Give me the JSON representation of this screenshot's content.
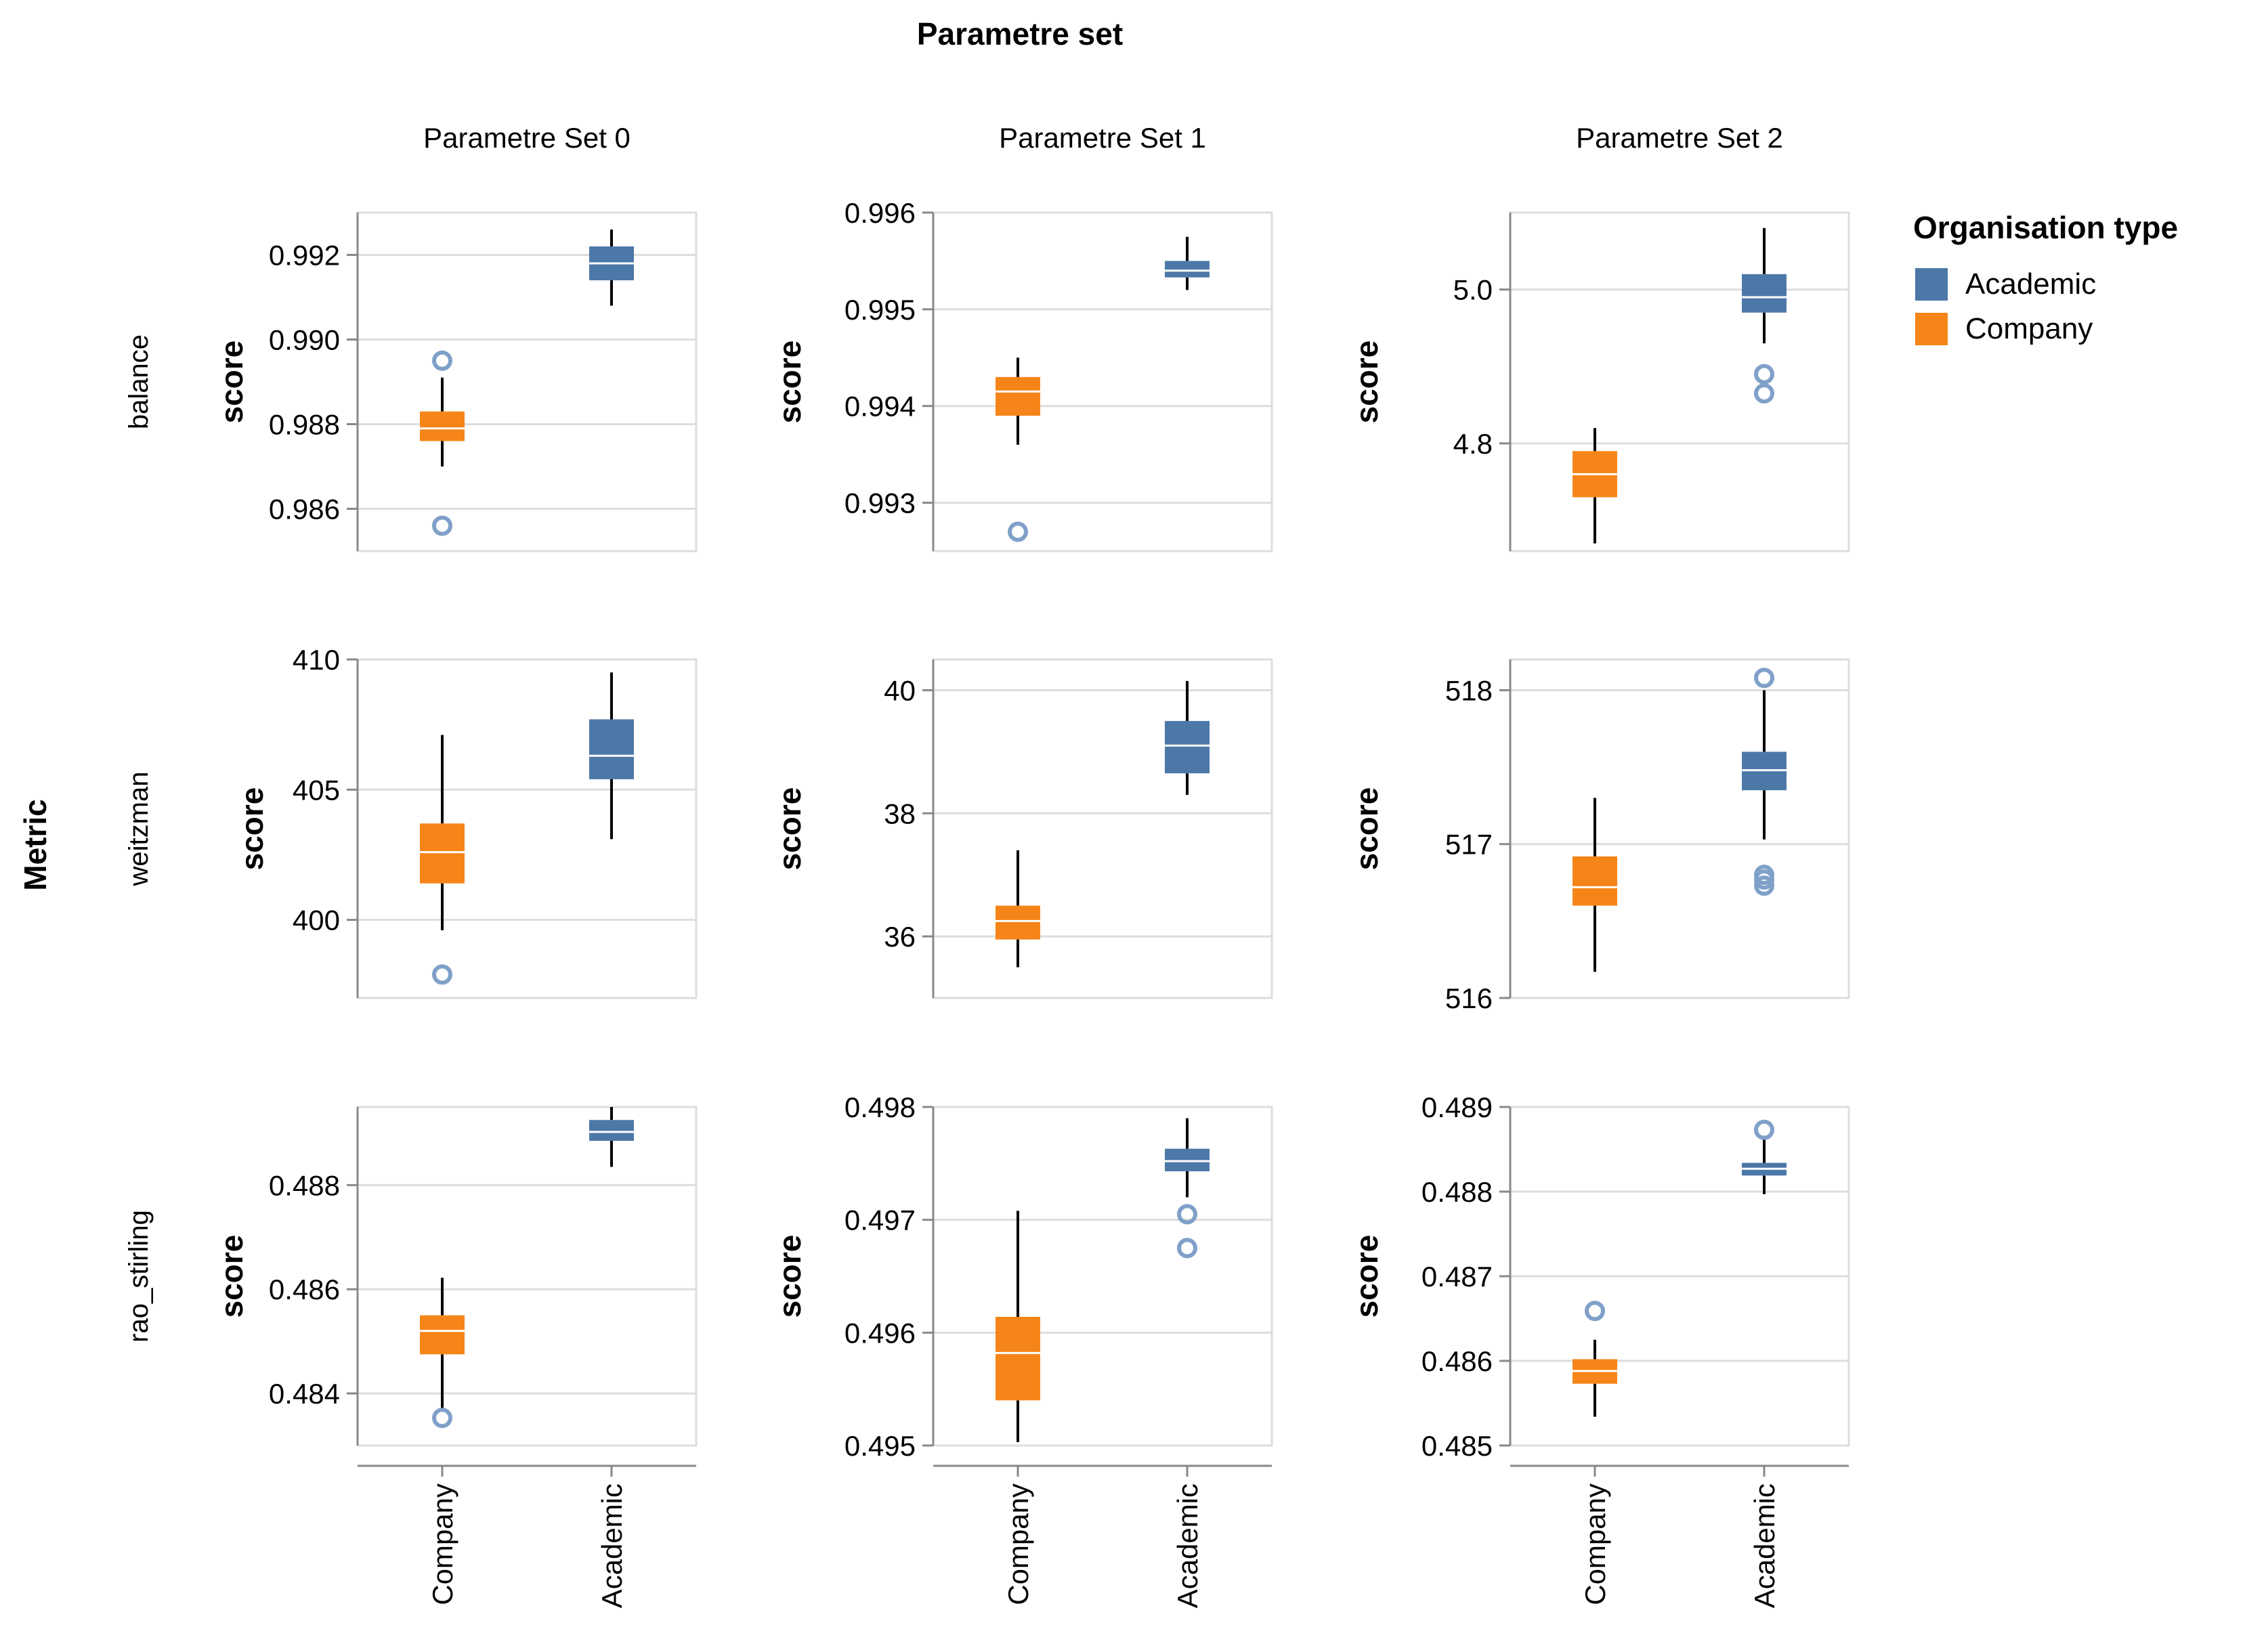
{
  "chart_data": {
    "type": "boxplot",
    "title": "Parametre set",
    "row_title": "Metric",
    "column_labels": [
      "Parametre Set 0",
      "Parametre Set 1",
      "Parametre Set 2"
    ],
    "row_labels": [
      "balance",
      "weitzman",
      "rao_stirling"
    ],
    "y_title": "score",
    "x_categories": [
      "Company",
      "Academic"
    ],
    "legend": {
      "title": "Organisation type",
      "position": "top-right",
      "items": [
        {
          "label": "Academic",
          "color": "#4c78a8"
        },
        {
          "label": "Company",
          "color": "#f58518"
        }
      ]
    },
    "colors": {
      "Academic": "#4c78a8",
      "Company": "#f58518",
      "outlier": "#7fa0c8",
      "grid": "#dddddd",
      "axis": "#888888",
      "text": "#000000"
    },
    "panels": [
      {
        "row": "balance",
        "column": "Parametre Set 0",
        "ylim": [
          0.985,
          0.993
        ],
        "yticks": [
          "0.986",
          "0.988",
          "0.990",
          "0.992"
        ],
        "ytick_values": [
          0.986,
          0.988,
          0.99,
          0.992
        ],
        "boxes": [
          {
            "group": "Company",
            "min": 0.987,
            "q1": 0.9876,
            "median": 0.9879,
            "q3": 0.9883,
            "max": 0.9891,
            "outliers": [
              0.9895,
              0.9856
            ]
          },
          {
            "group": "Academic",
            "min": 0.9908,
            "q1": 0.9914,
            "median": 0.9918,
            "q3": 0.9922,
            "max": 0.9926,
            "outliers": []
          }
        ]
      },
      {
        "row": "balance",
        "column": "Parametre Set 1",
        "ylim": [
          0.9925,
          0.996
        ],
        "yticks": [
          "0.993",
          "0.994",
          "0.995",
          "0.996"
        ],
        "ytick_values": [
          0.993,
          0.994,
          0.995,
          0.996
        ],
        "boxes": [
          {
            "group": "Company",
            "min": 0.9936,
            "q1": 0.9939,
            "median": 0.99415,
            "q3": 0.9943,
            "max": 0.9945,
            "outliers": [
              0.9927
            ]
          },
          {
            "group": "Academic",
            "min": 0.9952,
            "q1": 0.99533,
            "median": 0.9954,
            "q3": 0.9955,
            "max": 0.99575,
            "outliers": []
          }
        ]
      },
      {
        "row": "balance",
        "column": "Parametre Set 2",
        "ylim": [
          4.66,
          5.1
        ],
        "yticks": [
          "4.8",
          "5.0"
        ],
        "ytick_values": [
          4.8,
          5.0
        ],
        "boxes": [
          {
            "group": "Company",
            "min": 4.67,
            "q1": 4.73,
            "median": 4.76,
            "q3": 4.79,
            "max": 4.82,
            "outliers": []
          },
          {
            "group": "Academic",
            "min": 4.93,
            "q1": 4.97,
            "median": 4.99,
            "q3": 5.02,
            "max": 5.08,
            "outliers": [
              4.89,
              4.865
            ]
          }
        ]
      },
      {
        "row": "weitzman",
        "column": "Parametre Set 0",
        "ylim": [
          397.0,
          410.0
        ],
        "yticks": [
          "400",
          "405",
          "410"
        ],
        "ytick_values": [
          400,
          405,
          410
        ],
        "boxes": [
          {
            "group": "Company",
            "min": 399.6,
            "q1": 401.4,
            "median": 402.6,
            "q3": 403.7,
            "max": 407.1,
            "outliers": [
              397.9
            ]
          },
          {
            "group": "Academic",
            "min": 403.1,
            "q1": 405.4,
            "median": 406.3,
            "q3": 407.7,
            "max": 409.5,
            "outliers": []
          }
        ]
      },
      {
        "row": "weitzman",
        "column": "Parametre Set 1",
        "ylim": [
          35.0,
          40.5
        ],
        "yticks": [
          "36",
          "38",
          "40"
        ],
        "ytick_values": [
          36,
          38,
          40
        ],
        "boxes": [
          {
            "group": "Company",
            "min": 35.5,
            "q1": 35.95,
            "median": 36.25,
            "q3": 36.5,
            "max": 37.4,
            "outliers": []
          },
          {
            "group": "Academic",
            "min": 38.3,
            "q1": 38.65,
            "median": 39.1,
            "q3": 39.5,
            "max": 40.15,
            "outliers": []
          }
        ]
      },
      {
        "row": "weitzman",
        "column": "Parametre Set 2",
        "ylim": [
          516.0,
          518.2
        ],
        "yticks": [
          "516",
          "517",
          "518"
        ],
        "ytick_values": [
          516,
          517,
          518
        ],
        "boxes": [
          {
            "group": "Company",
            "min": 516.17,
            "q1": 516.6,
            "median": 516.72,
            "q3": 516.92,
            "max": 517.3,
            "outliers": []
          },
          {
            "group": "Academic",
            "min": 517.03,
            "q1": 517.35,
            "median": 517.48,
            "q3": 517.6,
            "max": 518.0,
            "outliers": [
              518.08,
              516.8,
              516.77,
              516.73
            ]
          }
        ]
      },
      {
        "row": "rao_stirling",
        "column": "Parametre Set 0",
        "ylim": [
          0.483,
          0.4895
        ],
        "yticks": [
          "0.484",
          "0.486",
          "0.488"
        ],
        "ytick_values": [
          0.484,
          0.486,
          0.488
        ],
        "boxes": [
          {
            "group": "Company",
            "min": 0.48365,
            "q1": 0.48475,
            "median": 0.4852,
            "q3": 0.4855,
            "max": 0.48622,
            "outliers": [
              0.48353
            ]
          },
          {
            "group": "Academic",
            "min": 0.48835,
            "q1": 0.48885,
            "median": 0.48902,
            "q3": 0.48925,
            "max": 0.4895,
            "outliers": []
          }
        ]
      },
      {
        "row": "rao_stirling",
        "column": "Parametre Set 1",
        "ylim": [
          0.495,
          0.498
        ],
        "yticks": [
          "0.495",
          "0.496",
          "0.497",
          "0.498"
        ],
        "ytick_values": [
          0.495,
          0.496,
          0.497,
          0.498
        ],
        "boxes": [
          {
            "group": "Company",
            "min": 0.49503,
            "q1": 0.4954,
            "median": 0.49582,
            "q3": 0.49614,
            "max": 0.49708,
            "outliers": []
          },
          {
            "group": "Academic",
            "min": 0.4972,
            "q1": 0.49743,
            "median": 0.49752,
            "q3": 0.49763,
            "max": 0.4979,
            "outliers": [
              0.49705,
              0.49675
            ]
          }
        ]
      },
      {
        "row": "rao_stirling",
        "column": "Parametre Set 2",
        "ylim": [
          0.485,
          0.489
        ],
        "yticks": [
          "0.485",
          "0.486",
          "0.487",
          "0.488",
          "0.489"
        ],
        "ytick_values": [
          0.485,
          0.486,
          0.487,
          0.488,
          0.489
        ],
        "boxes": [
          {
            "group": "Company",
            "min": 0.48534,
            "q1": 0.48573,
            "median": 0.48588,
            "q3": 0.48602,
            "max": 0.48625,
            "outliers": [
              0.48659
            ]
          },
          {
            "group": "Academic",
            "min": 0.48797,
            "q1": 0.48819,
            "median": 0.48827,
            "q3": 0.48834,
            "max": 0.48866,
            "outliers": [
              0.48873
            ]
          }
        ]
      }
    ]
  }
}
